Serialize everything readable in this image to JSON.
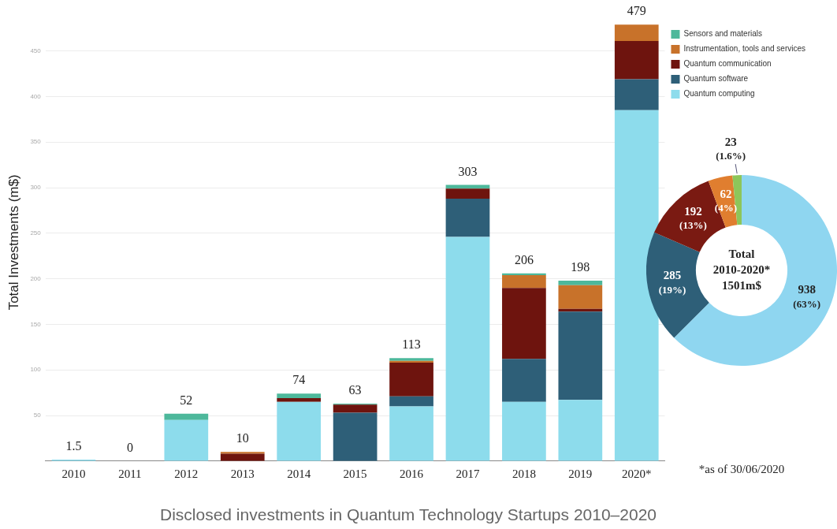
{
  "chart_data": [
    {
      "type": "bar",
      "title": "Disclosed investments in Quantum Technology Startups 2010–2020",
      "ylabel": "Total Investments (m$)",
      "categories": [
        "2010",
        "2011",
        "2012",
        "2013",
        "2014",
        "2015",
        "2016",
        "2017",
        "2018",
        "2019",
        "2020*"
      ],
      "stacked": true,
      "series": [
        {
          "name": "Quantum computing",
          "color": "#8ddcec",
          "values": [
            1.5,
            0,
            45,
            0,
            65,
            0,
            60,
            246,
            65,
            67,
            385
          ]
        },
        {
          "name": "Quantum software",
          "color": "#2e5f78",
          "values": [
            0,
            0,
            0,
            0,
            0,
            53,
            11,
            42,
            47,
            97,
            34
          ]
        },
        {
          "name": "Quantum communication",
          "color": "#6e140e",
          "values": [
            0,
            0,
            0,
            8,
            4,
            9,
            37,
            11,
            78,
            3,
            42
          ]
        },
        {
          "name": "Instrumentation, tools and services",
          "color": "#c8722a",
          "values": [
            0,
            0,
            0,
            2,
            0,
            0,
            2,
            0,
            14,
            26,
            18
          ]
        },
        {
          "name": "Sensors and materials",
          "color": "#4db89b",
          "values": [
            0,
            0,
            7,
            0,
            5,
            1,
            3,
            4,
            2,
            5,
            0
          ]
        }
      ],
      "totals": [
        "1.5",
        "0",
        "52",
        "10",
        "74",
        "63",
        "113",
        "303",
        "206",
        "198",
        "479"
      ],
      "ylim": [
        0,
        480
      ],
      "yticks": [
        50,
        100,
        150,
        200,
        250,
        300,
        350,
        400,
        450
      ],
      "grid": "y",
      "legend": "top right"
    },
    {
      "type": "donut",
      "categories": [
        null,
        null,
        null,
        null,
        null
      ],
      "values": [
        938,
        285,
        192,
        62,
        23
      ],
      "colors": [
        "#8fd6f0",
        "#2e5f78",
        "#7a1a12",
        "#e07e2f",
        "#8dc65a"
      ],
      "value_labels": [
        "938\n(63%)",
        "285\n(19%)",
        "192\n(13%)",
        "62\n(4%)",
        "23\n(1.6%)"
      ],
      "annotations": [
        "Total\n2010-2020*\n1501m$",
        "*as of 30/06/2020"
      ]
    }
  ]
}
